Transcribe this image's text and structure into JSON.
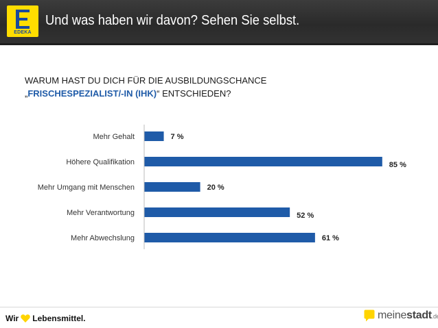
{
  "header": {
    "title": "Und was haben wir davon? Sehen Sie selbst.",
    "logo_text": "EDEKA"
  },
  "question": {
    "line1": "WARUM HAST DU DICH FÜR DIE AUSBILDUNGSCHANCE",
    "open_quote": "„",
    "highlight": "FRISCHESPEZIALIST/-IN (IHK)",
    "close_text": "“ ENTSCHIEDEN?"
  },
  "chart_data": {
    "type": "bar",
    "orientation": "horizontal",
    "categories": [
      "Mehr Gehalt",
      "Höhere Qualifikation",
      "Mehr Umgang mit Menschen",
      "Mehr Verantwortung",
      "Mehr Abwechslung"
    ],
    "values": [
      7,
      85,
      20,
      52,
      61
    ],
    "value_labels": [
      "7 %",
      "85 %",
      "20 %",
      "52 %",
      "61 %"
    ],
    "xlim": [
      0,
      100
    ],
    "grid": false,
    "bar_color": "#1f5ba8"
  },
  "footer": {
    "left_wir": "Wir",
    "left_rest": "Lebensmittel.",
    "right_meine": "meine",
    "right_stadt": "stadt",
    "right_tld": ".de",
    "heart_color": "#ffd400"
  }
}
